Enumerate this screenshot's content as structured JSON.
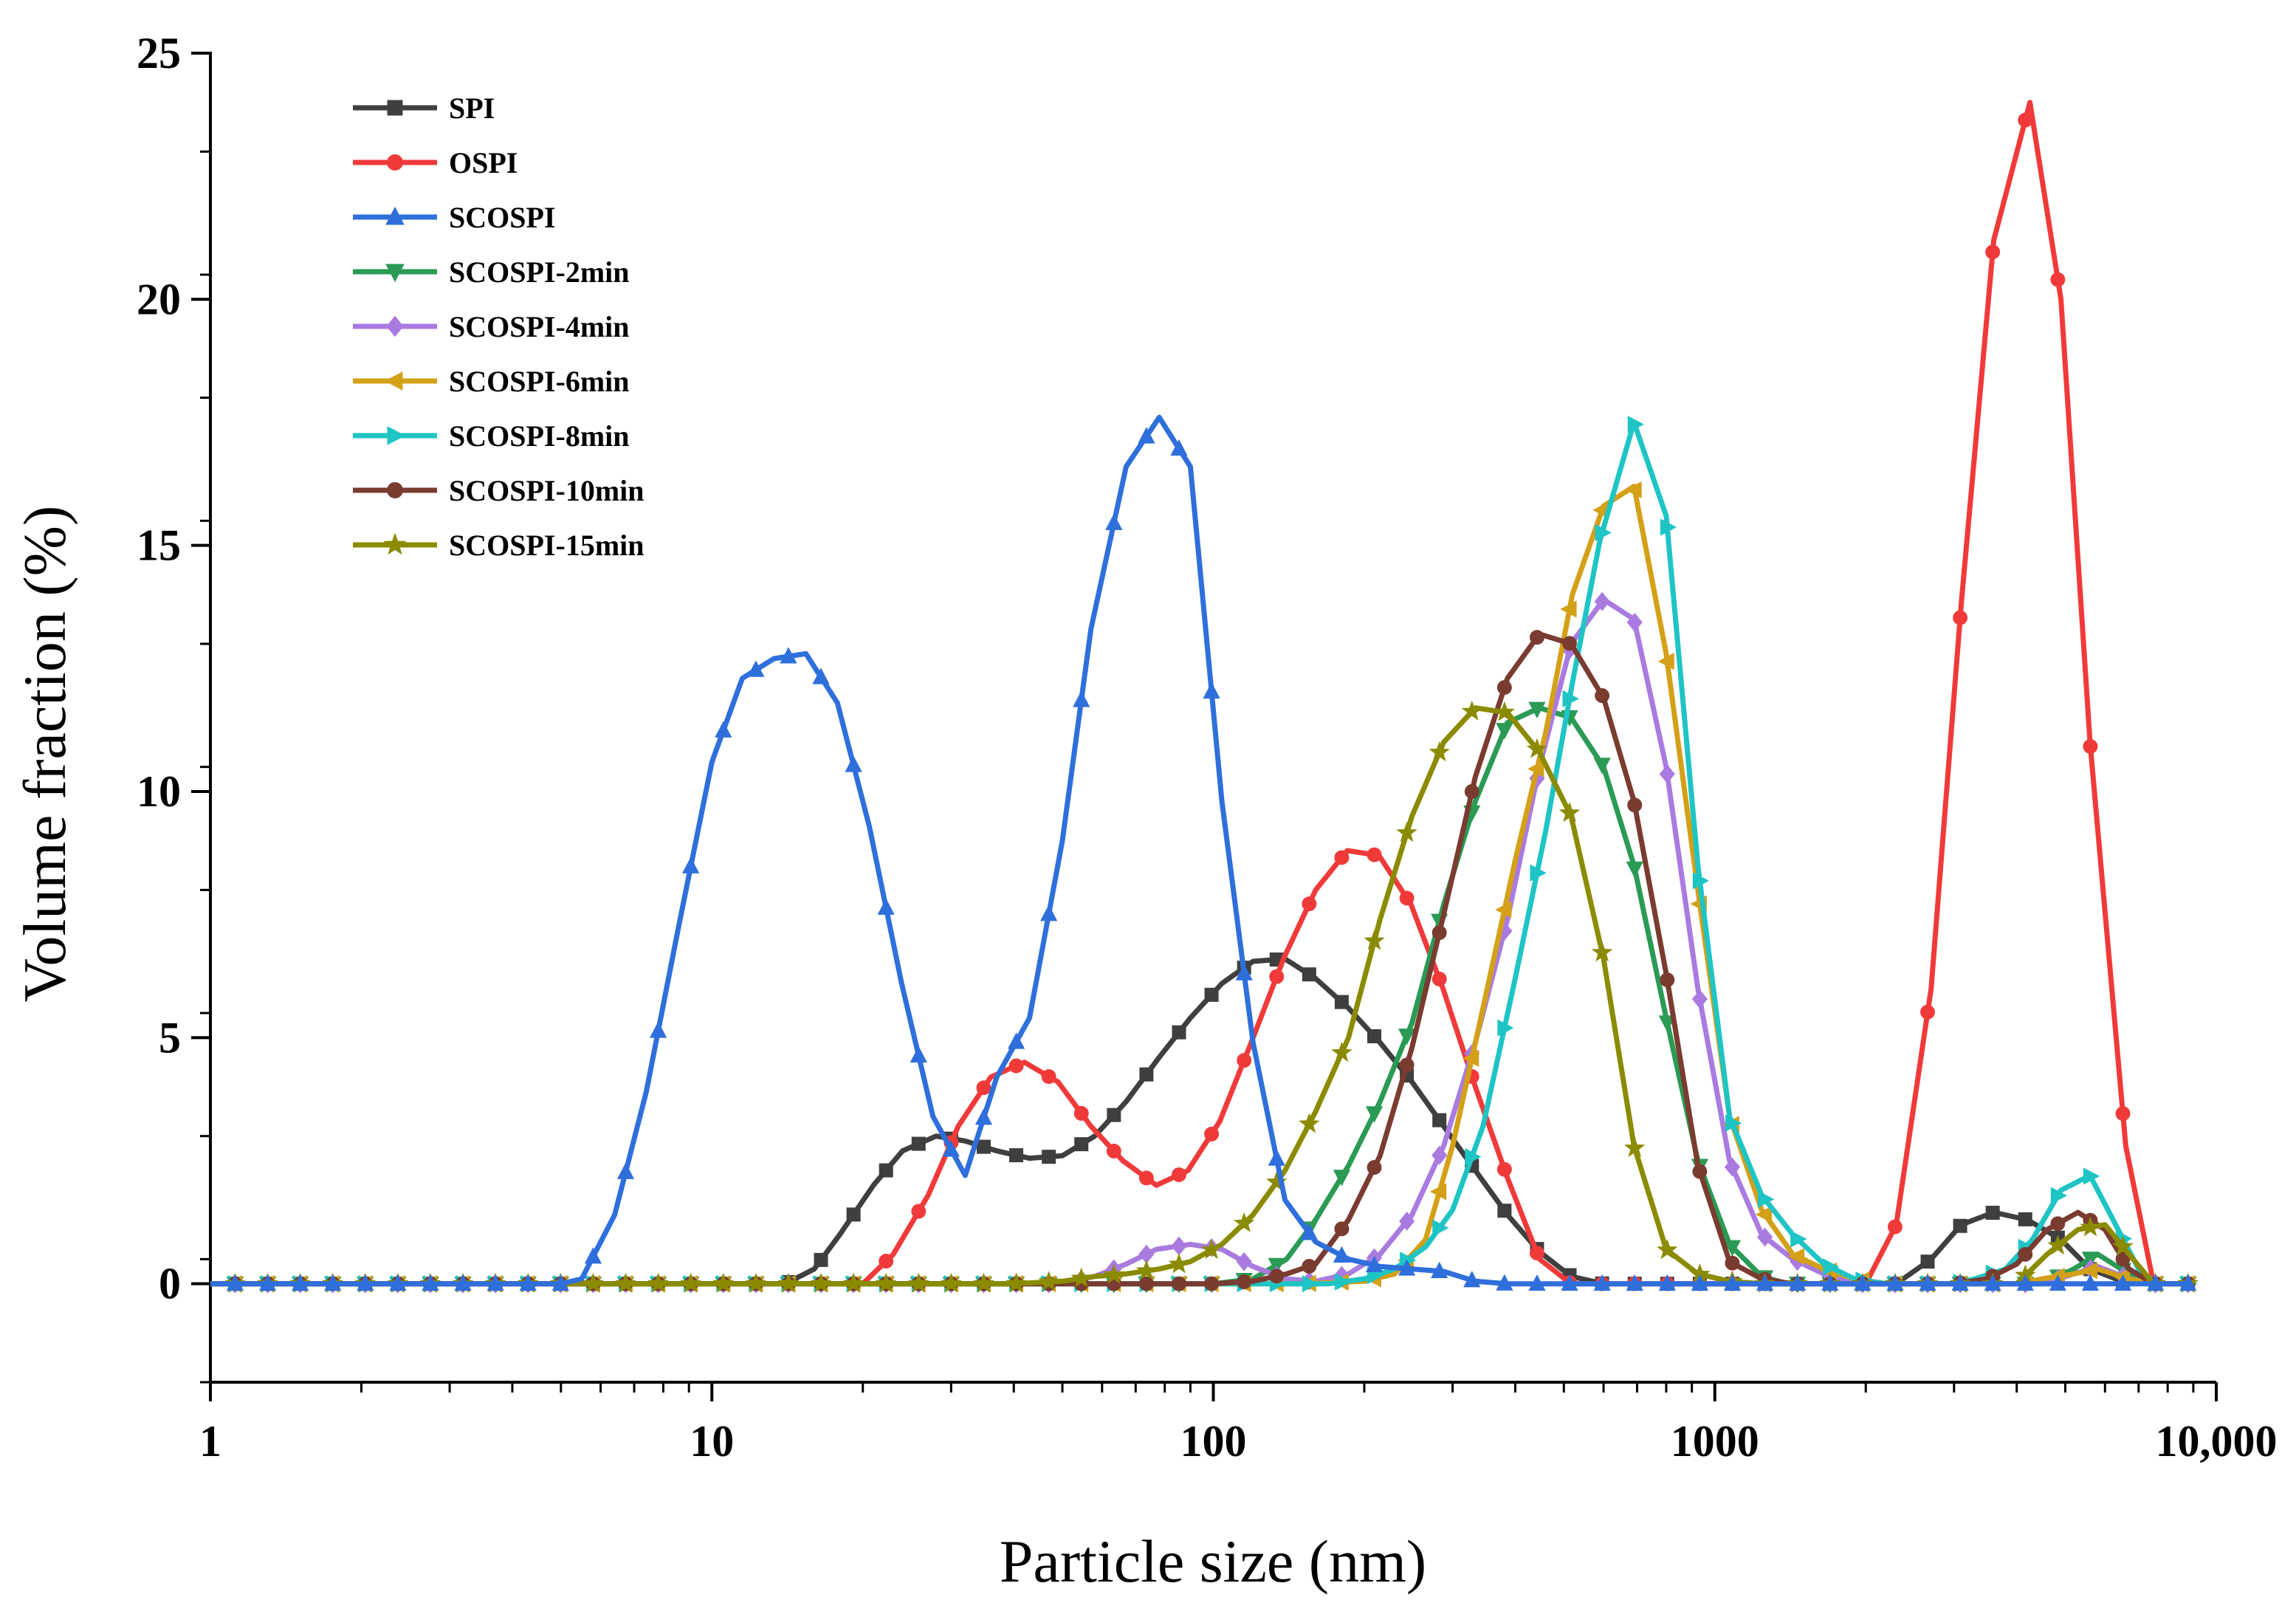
{
  "chart_data": {
    "type": "line",
    "title": "",
    "xlabel": "Particle size (nm)",
    "ylabel": "Volume fraction (%)",
    "x_scale": "log",
    "xlim": [
      1,
      10000
    ],
    "ylim": [
      -2,
      25
    ],
    "x_ticks": [
      {
        "value": 1,
        "label": "1"
      },
      {
        "value": 10,
        "label": "10"
      },
      {
        "value": 100,
        "label": "100"
      },
      {
        "value": 1000,
        "label": "1000"
      },
      {
        "value": 10000,
        "label": "10,000"
      }
    ],
    "y_ticks": [
      {
        "value": 0,
        "label": "0"
      },
      {
        "value": 5,
        "label": "5"
      },
      {
        "value": 10,
        "label": "10"
      },
      {
        "value": 15,
        "label": "15"
      },
      {
        "value": 20,
        "label": "20"
      },
      {
        "value": 25,
        "label": "25"
      }
    ],
    "legend_position": "top-left",
    "series": [
      {
        "name": "SPI",
        "color": "#3f3f3f",
        "marker": "square",
        "points": [
          [
            1,
            0
          ],
          [
            14,
            0
          ],
          [
            16,
            0.3
          ],
          [
            18,
            1.0
          ],
          [
            21,
            2.0
          ],
          [
            24,
            2.7
          ],
          [
            28,
            3.0
          ],
          [
            32,
            2.9
          ],
          [
            37,
            2.7
          ],
          [
            43,
            2.55
          ],
          [
            50,
            2.6
          ],
          [
            58,
            3.0
          ],
          [
            67,
            3.7
          ],
          [
            78,
            4.6
          ],
          [
            90,
            5.4
          ],
          [
            104,
            6.1
          ],
          [
            120,
            6.55
          ],
          [
            139,
            6.6
          ],
          [
            160,
            6.2
          ],
          [
            186,
            5.6
          ],
          [
            215,
            4.9
          ],
          [
            249,
            4.1
          ],
          [
            288,
            3.2
          ],
          [
            333,
            2.3
          ],
          [
            386,
            1.4
          ],
          [
            447,
            0.65
          ],
          [
            517,
            0.15
          ],
          [
            600,
            0
          ],
          [
            2300,
            0
          ],
          [
            2700,
            0.5
          ],
          [
            3100,
            1.2
          ],
          [
            3600,
            1.45
          ],
          [
            4200,
            1.3
          ],
          [
            4900,
            0.9
          ],
          [
            5600,
            0.3
          ],
          [
            6500,
            0.05
          ],
          [
            7500,
            0
          ],
          [
            8800,
            0
          ]
        ]
      },
      {
        "name": "OSPI",
        "color": "#f03a3a",
        "marker": "circle",
        "points": [
          [
            1,
            0
          ],
          [
            20,
            0
          ],
          [
            23,
            0.6
          ],
          [
            27,
            1.8
          ],
          [
            31,
            3.2
          ],
          [
            36,
            4.2
          ],
          [
            42,
            4.5
          ],
          [
            49,
            4.1
          ],
          [
            57,
            3.2
          ],
          [
            66,
            2.5
          ],
          [
            77,
            2.0
          ],
          [
            89,
            2.3
          ],
          [
            103,
            3.3
          ],
          [
            119,
            4.9
          ],
          [
            138,
            6.6
          ],
          [
            160,
            8.0
          ],
          [
            185,
            8.8
          ],
          [
            214,
            8.7
          ],
          [
            248,
            7.7
          ],
          [
            287,
            6.0
          ],
          [
            333,
            4.0
          ],
          [
            386,
            2.15
          ],
          [
            447,
            0.5
          ],
          [
            517,
            0
          ],
          [
            2000,
            0
          ],
          [
            2300,
            1.2
          ],
          [
            2700,
            6.0
          ],
          [
            3100,
            13.8
          ],
          [
            3600,
            21.2
          ],
          [
            4250,
            24.0
          ],
          [
            4900,
            20.0
          ],
          [
            5600,
            11.0
          ],
          [
            6600,
            2.8
          ],
          [
            7500,
            0
          ],
          [
            8800,
            0
          ]
        ]
      },
      {
        "name": "SCOSPI",
        "color": "#2f6fdc",
        "marker": "triangle-up",
        "points": [
          [
            1,
            0
          ],
          [
            5,
            0
          ],
          [
            5.5,
            0.1
          ],
          [
            6.4,
            1.4
          ],
          [
            7.4,
            3.9
          ],
          [
            8.6,
            7.3
          ],
          [
            10,
            10.6
          ],
          [
            11.5,
            12.3
          ],
          [
            13.3,
            12.7
          ],
          [
            15.4,
            12.8
          ],
          [
            17.8,
            11.8
          ],
          [
            20.6,
            9.3
          ],
          [
            23.9,
            6.1
          ],
          [
            27.6,
            3.4
          ],
          [
            32,
            2.2
          ],
          [
            37,
            4.2
          ],
          [
            43,
            5.4
          ],
          [
            50,
            9.0
          ],
          [
            57,
            13.3
          ],
          [
            67,
            16.6
          ],
          [
            78,
            17.6
          ],
          [
            90,
            16.6
          ],
          [
            104,
            9.8
          ],
          [
            120,
            4.9
          ],
          [
            139,
            1.7
          ],
          [
            160,
            0.85
          ],
          [
            186,
            0.5
          ],
          [
            215,
            0.35
          ],
          [
            249,
            0.3
          ],
          [
            288,
            0.25
          ],
          [
            333,
            0.05
          ],
          [
            386,
            0
          ],
          [
            8800,
            0
          ]
        ]
      },
      {
        "name": "SCOSPI-2min",
        "color": "#2a9a55",
        "marker": "triangle-down",
        "points": [
          [
            1,
            0
          ],
          [
            100,
            0
          ],
          [
            120,
            0.1
          ],
          [
            140,
            0.5
          ],
          [
            160,
            1.3
          ],
          [
            186,
            2.4
          ],
          [
            215,
            3.7
          ],
          [
            249,
            5.3
          ],
          [
            288,
            7.7
          ],
          [
            333,
            9.8
          ],
          [
            386,
            11.4
          ],
          [
            447,
            11.7
          ],
          [
            517,
            11.5
          ],
          [
            600,
            10.5
          ],
          [
            690,
            8.5
          ],
          [
            800,
            5.4
          ],
          [
            925,
            2.5
          ],
          [
            1070,
            0.8
          ],
          [
            1240,
            0.15
          ],
          [
            1400,
            0
          ],
          [
            4500,
            0
          ],
          [
            5200,
            0.3
          ],
          [
            5800,
            0.6
          ],
          [
            6700,
            0.2
          ],
          [
            7500,
            0
          ],
          [
            8800,
            0
          ]
        ]
      },
      {
        "name": "SCOSPI-4min",
        "color": "#a97be0",
        "marker": "diamond",
        "points": [
          [
            1,
            0
          ],
          [
            50,
            0
          ],
          [
            58,
            0.15
          ],
          [
            67,
            0.4
          ],
          [
            77,
            0.7
          ],
          [
            90,
            0.8
          ],
          [
            104,
            0.7
          ],
          [
            120,
            0.35
          ],
          [
            139,
            0.1
          ],
          [
            160,
            0.05
          ],
          [
            186,
            0.2
          ],
          [
            215,
            0.6
          ],
          [
            249,
            1.4
          ],
          [
            288,
            2.8
          ],
          [
            333,
            4.9
          ],
          [
            386,
            7.4
          ],
          [
            447,
            10.5
          ],
          [
            517,
            13.0
          ],
          [
            600,
            13.9
          ],
          [
            690,
            13.5
          ],
          [
            800,
            10.5
          ],
          [
            925,
            6.0
          ],
          [
            1070,
            2.5
          ],
          [
            1240,
            1.0
          ],
          [
            1430,
            0.5
          ],
          [
            1650,
            0.2
          ],
          [
            1900,
            0
          ],
          [
            4500,
            0
          ],
          [
            5200,
            0.2
          ],
          [
            5800,
            0.35
          ],
          [
            6700,
            0.1
          ],
          [
            7500,
            0
          ],
          [
            8800,
            0
          ]
        ]
      },
      {
        "name": "SCOSPI-6min",
        "color": "#d4a017",
        "marker": "triangle-left",
        "points": [
          [
            1,
            0
          ],
          [
            150,
            0
          ],
          [
            200,
            0.05
          ],
          [
            230,
            0.2
          ],
          [
            265,
            0.9
          ],
          [
            300,
            2.8
          ],
          [
            345,
            5.6
          ],
          [
            400,
            8.6
          ],
          [
            460,
            11.2
          ],
          [
            520,
            14.0
          ],
          [
            600,
            15.8
          ],
          [
            690,
            16.2
          ],
          [
            800,
            12.8
          ],
          [
            925,
            8.0
          ],
          [
            1070,
            3.4
          ],
          [
            1240,
            1.5
          ],
          [
            1430,
            0.6
          ],
          [
            1650,
            0.3
          ],
          [
            1900,
            0.1
          ],
          [
            2200,
            0
          ],
          [
            4000,
            0
          ],
          [
            4500,
            0.1
          ],
          [
            5200,
            0.2
          ],
          [
            5800,
            0.3
          ],
          [
            6700,
            0.1
          ],
          [
            7500,
            0
          ],
          [
            8800,
            0
          ]
        ]
      },
      {
        "name": "SCOSPI-8min",
        "color": "#1fc4c4",
        "marker": "triangle-right",
        "points": [
          [
            1,
            0
          ],
          [
            170,
            0
          ],
          [
            200,
            0.1
          ],
          [
            230,
            0.3
          ],
          [
            265,
            0.75
          ],
          [
            300,
            1.5
          ],
          [
            345,
            3.2
          ],
          [
            400,
            6.2
          ],
          [
            460,
            9.2
          ],
          [
            520,
            12.2
          ],
          [
            590,
            15.1
          ],
          [
            690,
            17.5
          ],
          [
            800,
            15.6
          ],
          [
            925,
            8.5
          ],
          [
            1070,
            3.4
          ],
          [
            1240,
            1.8
          ],
          [
            1430,
            1.0
          ],
          [
            1650,
            0.4
          ],
          [
            1900,
            0.1
          ],
          [
            2200,
            0
          ],
          [
            3000,
            0
          ],
          [
            3300,
            0.1
          ],
          [
            3800,
            0.3
          ],
          [
            4300,
            0.9
          ],
          [
            4900,
            1.9
          ],
          [
            5600,
            2.2
          ],
          [
            6300,
            1.2
          ],
          [
            7000,
            0.3
          ],
          [
            7600,
            0
          ],
          [
            8800,
            0
          ]
        ]
      },
      {
        "name": "SCOSPI-10min",
        "color": "#7a3b30",
        "marker": "circle",
        "points": [
          [
            1,
            0
          ],
          [
            100,
            0
          ],
          [
            120,
            0.05
          ],
          [
            140,
            0.2
          ],
          [
            160,
            0.4
          ],
          [
            186,
            1.3
          ],
          [
            215,
            2.6
          ],
          [
            249,
            4.8
          ],
          [
            288,
            7.5
          ],
          [
            333,
            10.3
          ],
          [
            386,
            12.3
          ],
          [
            447,
            13.2
          ],
          [
            517,
            13.0
          ],
          [
            600,
            11.9
          ],
          [
            690,
            9.8
          ],
          [
            800,
            6.3
          ],
          [
            925,
            2.4
          ],
          [
            1070,
            0.45
          ],
          [
            1240,
            0.1
          ],
          [
            1430,
            0
          ],
          [
            3000,
            0
          ],
          [
            3500,
            0.1
          ],
          [
            4000,
            0.4
          ],
          [
            4600,
            1.1
          ],
          [
            5300,
            1.45
          ],
          [
            6000,
            1.1
          ],
          [
            6700,
            0.3
          ],
          [
            7500,
            0
          ],
          [
            8800,
            0
          ]
        ]
      },
      {
        "name": "SCOSPI-15min",
        "color": "#8b8b00",
        "marker": "star",
        "points": [
          [
            1,
            0
          ],
          [
            40,
            0
          ],
          [
            50,
            0.05
          ],
          [
            58,
            0.15
          ],
          [
            67,
            0.2
          ],
          [
            78,
            0.3
          ],
          [
            90,
            0.45
          ],
          [
            104,
            0.8
          ],
          [
            120,
            1.4
          ],
          [
            139,
            2.3
          ],
          [
            160,
            3.5
          ],
          [
            186,
            5.0
          ],
          [
            215,
            7.4
          ],
          [
            249,
            9.5
          ],
          [
            288,
            11.0
          ],
          [
            333,
            11.7
          ],
          [
            386,
            11.6
          ],
          [
            447,
            10.8
          ],
          [
            517,
            9.5
          ],
          [
            600,
            6.6
          ],
          [
            690,
            2.8
          ],
          [
            800,
            0.7
          ],
          [
            925,
            0.2
          ],
          [
            1070,
            0.05
          ],
          [
            1240,
            0
          ],
          [
            4000,
            0
          ],
          [
            4600,
            0.6
          ],
          [
            5300,
            1.1
          ],
          [
            6000,
            1.2
          ],
          [
            6700,
            0.6
          ],
          [
            7500,
            0
          ],
          [
            8800,
            0
          ]
        ]
      }
    ]
  }
}
